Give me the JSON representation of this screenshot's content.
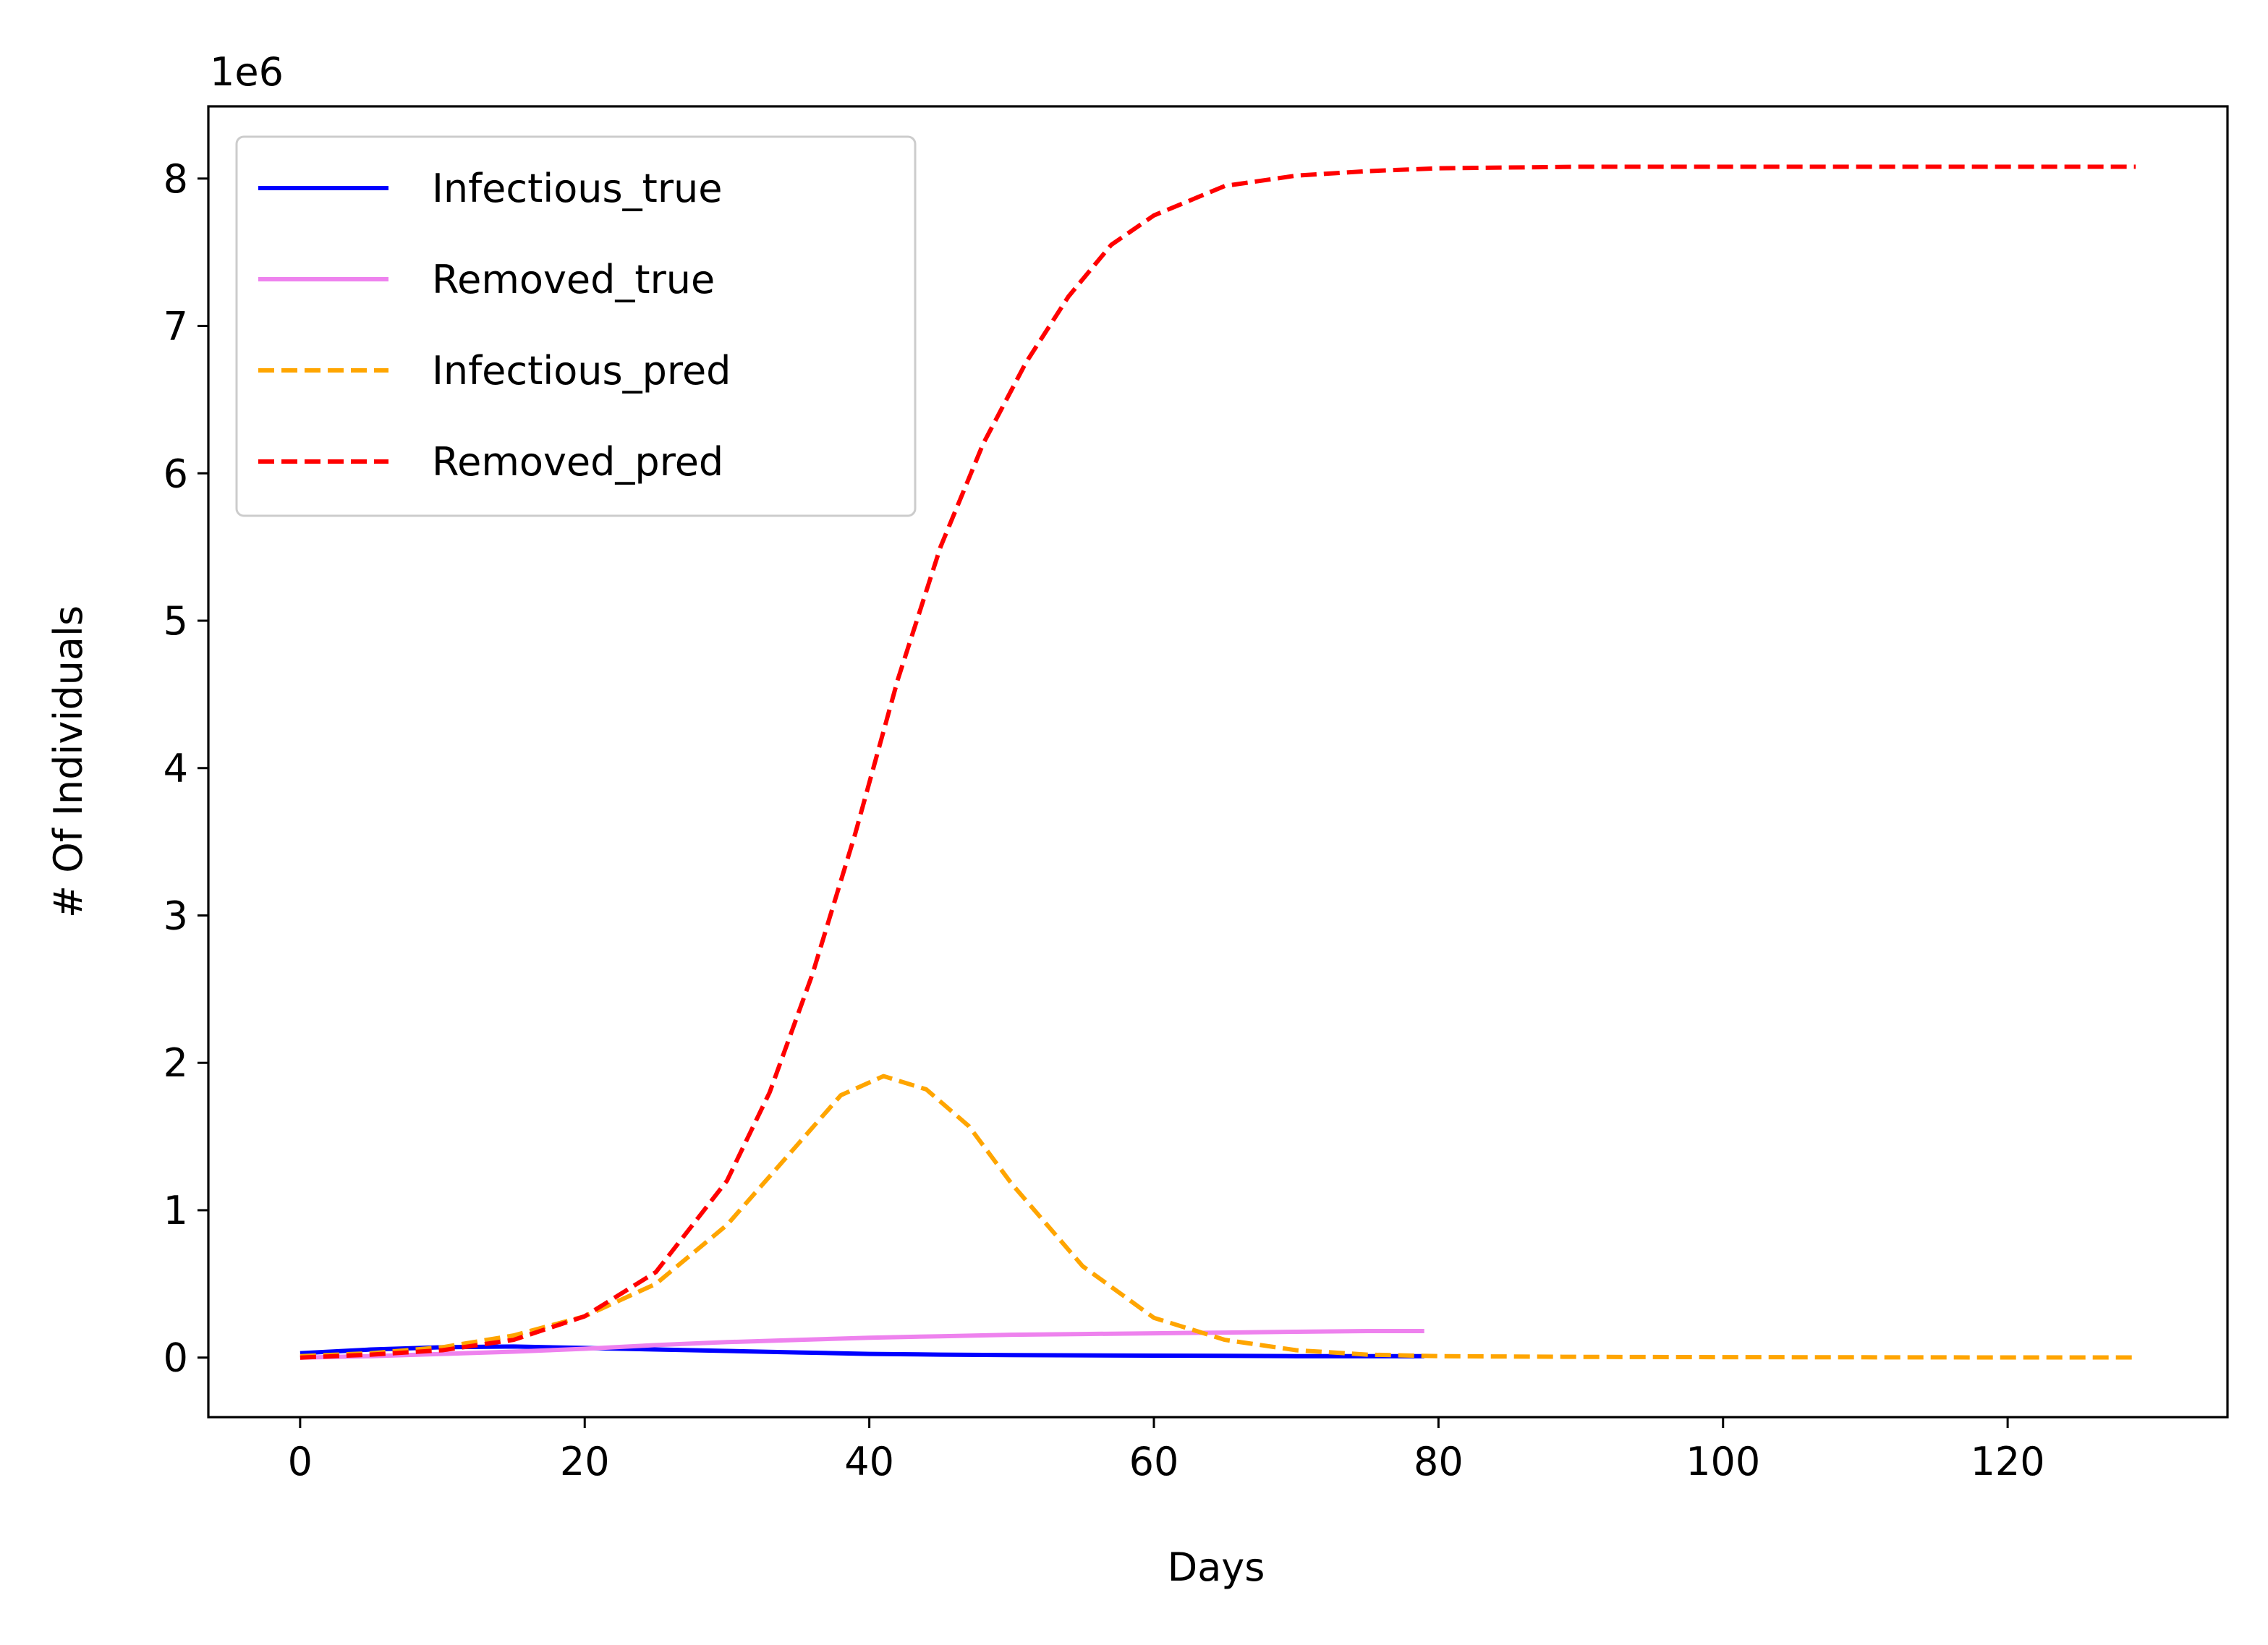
{
  "chart_data": {
    "type": "line",
    "title": "",
    "xlabel": "Days",
    "ylabel": "# Of Individuals",
    "offset_label": "1e6",
    "xlim": [
      -6.45,
      135.45
    ],
    "ylim": [
      -0.404,
      8.49
    ],
    "x_ticks": [
      0,
      20,
      40,
      60,
      80,
      100,
      120
    ],
    "y_ticks": [
      0,
      1,
      2,
      3,
      4,
      5,
      6,
      7,
      8
    ],
    "legend_position": "upper left",
    "series": [
      {
        "name": "Infectious_true",
        "color": "#0000ff",
        "style": "solid",
        "x": [
          0,
          5,
          10,
          15,
          20,
          25,
          30,
          35,
          40,
          45,
          50,
          55,
          60,
          65,
          70,
          75,
          79
        ],
        "y": [
          0.03,
          0.055,
          0.07,
          0.075,
          0.065,
          0.055,
          0.045,
          0.035,
          0.025,
          0.02,
          0.017,
          0.015,
          0.013,
          0.012,
          0.01,
          0.01,
          0.01
        ]
      },
      {
        "name": "Removed_true",
        "color": "#ee82ee",
        "style": "solid",
        "x": [
          0,
          5,
          10,
          15,
          20,
          25,
          30,
          35,
          40,
          45,
          50,
          55,
          60,
          65,
          70,
          75,
          79
        ],
        "y": [
          0.0,
          0.01,
          0.025,
          0.04,
          0.06,
          0.085,
          0.105,
          0.12,
          0.135,
          0.145,
          0.155,
          0.16,
          0.165,
          0.17,
          0.175,
          0.18,
          0.18
        ]
      },
      {
        "name": "Infectious_pred",
        "color": "#ffa500",
        "style": "dashed",
        "x": [
          0,
          5,
          10,
          15,
          20,
          25,
          30,
          35,
          38,
          41,
          44,
          47,
          50,
          55,
          60,
          65,
          70,
          75,
          80,
          90,
          100,
          110,
          120,
          129
        ],
        "y": [
          0.01,
          0.03,
          0.07,
          0.15,
          0.28,
          0.5,
          0.9,
          1.45,
          1.78,
          1.91,
          1.82,
          1.57,
          1.18,
          0.62,
          0.27,
          0.12,
          0.05,
          0.02,
          0.01,
          0.005,
          0.003,
          0.002,
          0.001,
          0.001
        ]
      },
      {
        "name": "Removed_pred",
        "color": "#ff0000",
        "style": "dashed",
        "x": [
          0,
          5,
          10,
          15,
          20,
          25,
          30,
          33,
          36,
          39,
          42,
          45,
          48,
          51,
          54,
          57,
          60,
          65,
          70,
          75,
          80,
          90,
          100,
          110,
          120,
          129
        ],
        "y": [
          0.0,
          0.02,
          0.05,
          0.12,
          0.28,
          0.58,
          1.2,
          1.8,
          2.6,
          3.55,
          4.6,
          5.5,
          6.2,
          6.75,
          7.2,
          7.55,
          7.75,
          7.95,
          8.02,
          8.05,
          8.07,
          8.08,
          8.08,
          8.08,
          8.08,
          8.08
        ]
      }
    ]
  }
}
